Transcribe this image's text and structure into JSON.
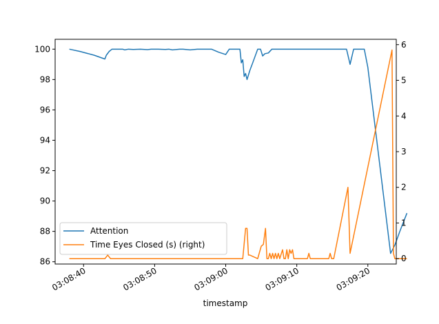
{
  "chart_data": {
    "type": "line",
    "title": "",
    "xlabel": "timestamp",
    "x_ticks": [
      "03:08:40",
      "03:08:50",
      "03:09:00",
      "03:09:10",
      "03:09:20"
    ],
    "x_tick_seconds": [
      40,
      50,
      60,
      70,
      80
    ],
    "xlim_seconds": [
      36.0,
      84.0
    ],
    "y_left_ticks": [
      "86",
      "88",
      "90",
      "92",
      "94",
      "96",
      "98",
      "100"
    ],
    "y_left_values": [
      86,
      88,
      90,
      92,
      94,
      96,
      98,
      100
    ],
    "ylim_left": [
      85.85,
      100.65
    ],
    "y_right_ticks": [
      "0",
      "1",
      "2",
      "3",
      "4",
      "5",
      "6"
    ],
    "y_right_values": [
      0,
      1,
      2,
      3,
      4,
      5,
      6
    ],
    "ylim_right": [
      -0.15,
      6.15
    ],
    "legend_position": "lower-left",
    "series": [
      {
        "name": "Attention",
        "axis": "left",
        "color": "#1f77b4",
        "x": [
          38.0,
          39.5,
          41.5,
          43.0,
          43.2,
          43.6,
          44.0,
          45.5,
          45.8,
          46.3,
          47.0,
          48.0,
          49.0,
          49.5,
          50.5,
          51.5,
          52.0,
          52.5,
          53.5,
          54.0,
          55.0,
          56.0,
          57.0,
          58.0,
          59.0,
          60.0,
          60.5,
          62.0,
          62.2,
          62.4,
          62.6,
          62.8,
          63.0,
          63.4,
          63.8,
          64.5,
          64.9,
          65.2,
          65.5,
          66.0,
          66.5,
          67.5,
          69.0,
          71.0,
          73.0,
          75.0,
          77.0,
          77.5,
          78.0,
          79.5,
          80.0,
          83.2,
          83.8,
          84.5,
          85.0,
          85.5
        ],
        "y": [
          100.0,
          99.85,
          99.6,
          99.35,
          99.6,
          99.85,
          100.0,
          100.0,
          99.95,
          100.0,
          99.98,
          100.0,
          99.97,
          100.0,
          100.0,
          99.98,
          100.0,
          99.95,
          100.0,
          100.0,
          99.95,
          100.0,
          100.0,
          100.0,
          99.8,
          99.65,
          100.0,
          100.0,
          99.1,
          99.3,
          98.2,
          98.4,
          98.0,
          98.6,
          99.1,
          100.0,
          100.0,
          99.55,
          99.7,
          99.75,
          100.0,
          100.0,
          100.0,
          100.0,
          100.0,
          100.0,
          100.0,
          99.0,
          100.0,
          100.0,
          98.8,
          86.55,
          87.1,
          88.0,
          88.6,
          89.2
        ]
      },
      {
        "name": "Time Eyes Closed (s) (right)",
        "axis": "right",
        "color": "#ff7f0e",
        "x": [
          38.0,
          43.0,
          43.4,
          43.8,
          44.2,
          62.4,
          62.8,
          63.0,
          63.2,
          63.4,
          64.5,
          65.0,
          65.3,
          65.6,
          65.8,
          66.0,
          66.2,
          66.4,
          66.6,
          66.8,
          67.0,
          67.2,
          67.4,
          67.6,
          68.0,
          68.2,
          68.4,
          68.6,
          68.8,
          69.0,
          69.2,
          69.4,
          69.6,
          69.8,
          70.0,
          70.2,
          70.5,
          71.0,
          71.5,
          71.7,
          71.9,
          74.5,
          74.7,
          74.9,
          75.2,
          77.2,
          77.5,
          83.4,
          83.6,
          83.8,
          85.0,
          85.5
        ],
        "y": [
          0.0,
          0.0,
          0.1,
          0.0,
          0.0,
          0.0,
          0.85,
          0.85,
          0.1,
          0.1,
          0.0,
          0.35,
          0.4,
          0.85,
          0.0,
          0.0,
          0.15,
          0.0,
          0.15,
          0.0,
          0.15,
          0.0,
          0.15,
          0.0,
          0.25,
          0.0,
          0.0,
          0.25,
          0.0,
          0.25,
          0.15,
          0.25,
          0.0,
          0.0,
          0.0,
          0.0,
          0.0,
          0.0,
          0.0,
          0.15,
          0.0,
          0.0,
          0.15,
          0.0,
          0.0,
          2.0,
          0.15,
          5.85,
          0.15,
          0.0,
          0.0,
          0.0
        ]
      }
    ]
  }
}
